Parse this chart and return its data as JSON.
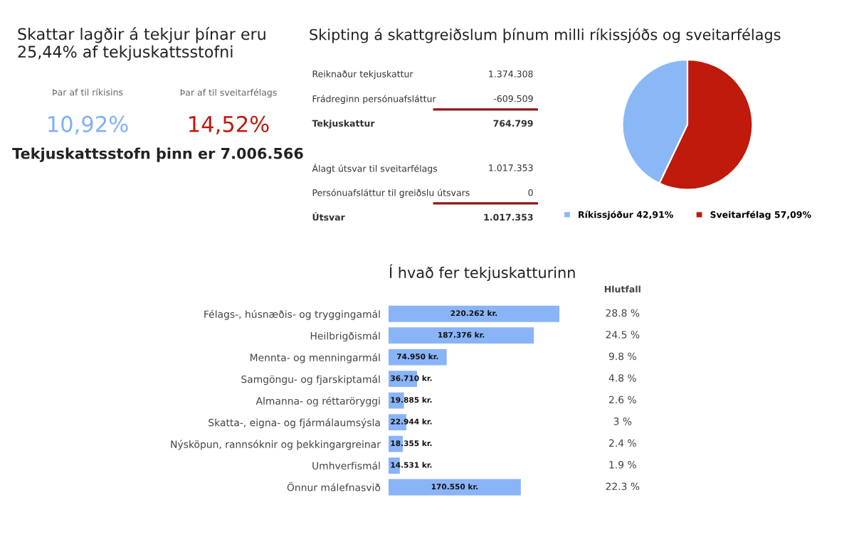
{
  "chart_data": [
    {
      "type": "other",
      "title": "Skattar lagðir á tekjur þínar eru 25,44% af tekjuskattsstofni",
      "annotations": [
        "Þar af til ríkisins",
        "Þar af til sveitarfélags",
        "10,92%",
        "14,52%",
        "Tekjuskattsstofn þinn er 7.006.566"
      ]
    },
    {
      "type": "other",
      "annotations": [
        "Reiknaður tekjuskattur",
        "1.374.308",
        "Frádreginn persónuafsláttur",
        "-609.509",
        "Tekjuskattur",
        "764.799",
        "Álagt útsvar til sveitarfélags",
        "1.017.353",
        "Persónuafsláttur til greiðslu útsvars",
        "0",
        "Útsvar",
        "1.017.353"
      ]
    },
    {
      "type": "pie",
      "title": "Skipting á skattgreiðslum þínum milli ríkissjóðs og sveitarfélags",
      "categories": [
        "Ríkissjóður 42,91%",
        "Sveitarfélag 57,09%"
      ],
      "values": [
        42.91,
        57.09
      ],
      "colors": [
        "#8ab8f7",
        "#bf1a0c"
      ],
      "legend": "bottom"
    },
    {
      "type": "bar",
      "orientation": "horizontal",
      "title": "Í hvað fer tekjuskatturinn",
      "color": "#8ab4f8",
      "tick_labels": "y",
      "categories": [
        "Félags-, húsnæðis- og tryggingamál",
        "Heilbrigðismál",
        "Mennta- og menningarmál",
        "Samgöngu- og fjarskiptamál",
        "Almanna- og réttaröryggi",
        "Skatta-, eigna- og fjármálaumsýsla",
        "Nýsköpun, rannsóknir og þekkingargreinar",
        "Umhverfismál",
        "Önnur málefnasvið"
      ],
      "values": [
        220262,
        187376,
        74950,
        36710,
        19885,
        22944,
        18355,
        14531,
        170550
      ],
      "value_labels": [
        "220.262 kr.",
        "187.376 kr.",
        "74.950 kr.",
        "36.710 kr.",
        "19.885 kr.",
        "22.944 kr.",
        "18.355 kr.",
        "14.531 kr.",
        "170.550 kr."
      ],
      "annotations": [
        "Hlutfall",
        "28.8 %",
        "24.5 %",
        "9.8 %",
        "4.8 %",
        "2.6 %",
        "3 %",
        "2.4 %",
        "1.9 %",
        "22.3 %"
      ]
    }
  ]
}
